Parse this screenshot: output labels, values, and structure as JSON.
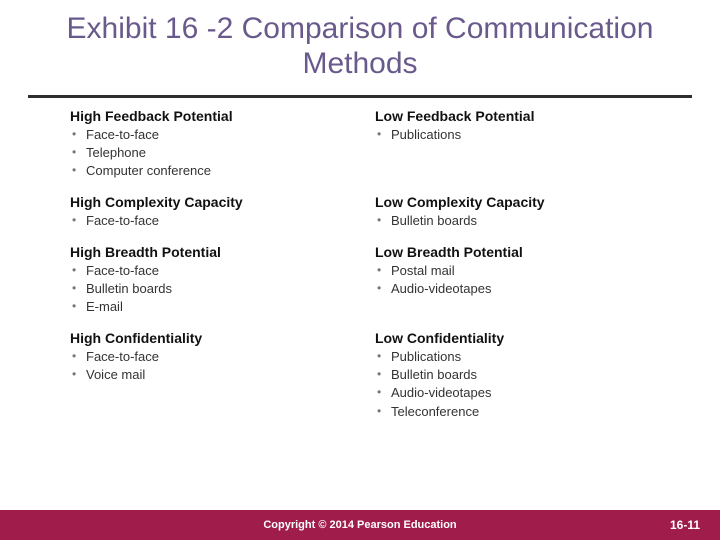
{
  "title": "Exhibit 16 -2 Comparison of Communication Methods",
  "colors": {
    "title_color": "#6a5a8c",
    "rule_color": "#2e2e2e",
    "heading_color": "#111111",
    "item_color": "#333333",
    "bullet_color": "#777777",
    "footer_bg": "#a01c4a",
    "footer_text": "#ffffff",
    "background": "#ffffff"
  },
  "left_column": [
    {
      "heading": "High Feedback Potential",
      "items": [
        "Face-to-face",
        "Telephone",
        "Computer conference"
      ]
    },
    {
      "heading": "High Complexity Capacity",
      "items": [
        "Face-to-face"
      ]
    },
    {
      "heading": "High Breadth Potential",
      "items": [
        "Face-to-face",
        "Bulletin boards",
        "E-mail"
      ]
    },
    {
      "heading": "High Confidentiality",
      "items": [
        "Face-to-face",
        "Voice mail"
      ]
    }
  ],
  "right_column": [
    {
      "heading": "Low Feedback Potential",
      "items": [
        "Publications"
      ]
    },
    {
      "heading": "Low Complexity Capacity",
      "items": [
        "Bulletin boards"
      ]
    },
    {
      "heading": "Low Breadth Potential",
      "items": [
        "Postal mail",
        "Audio-videotapes"
      ]
    },
    {
      "heading": "Low Confidentiality",
      "items": [
        "Publications",
        "Bulletin boards",
        "Audio-videotapes",
        "Teleconference"
      ]
    }
  ],
  "footer": {
    "copyright": "Copyright © 2014 Pearson Education",
    "page": "16-11"
  }
}
